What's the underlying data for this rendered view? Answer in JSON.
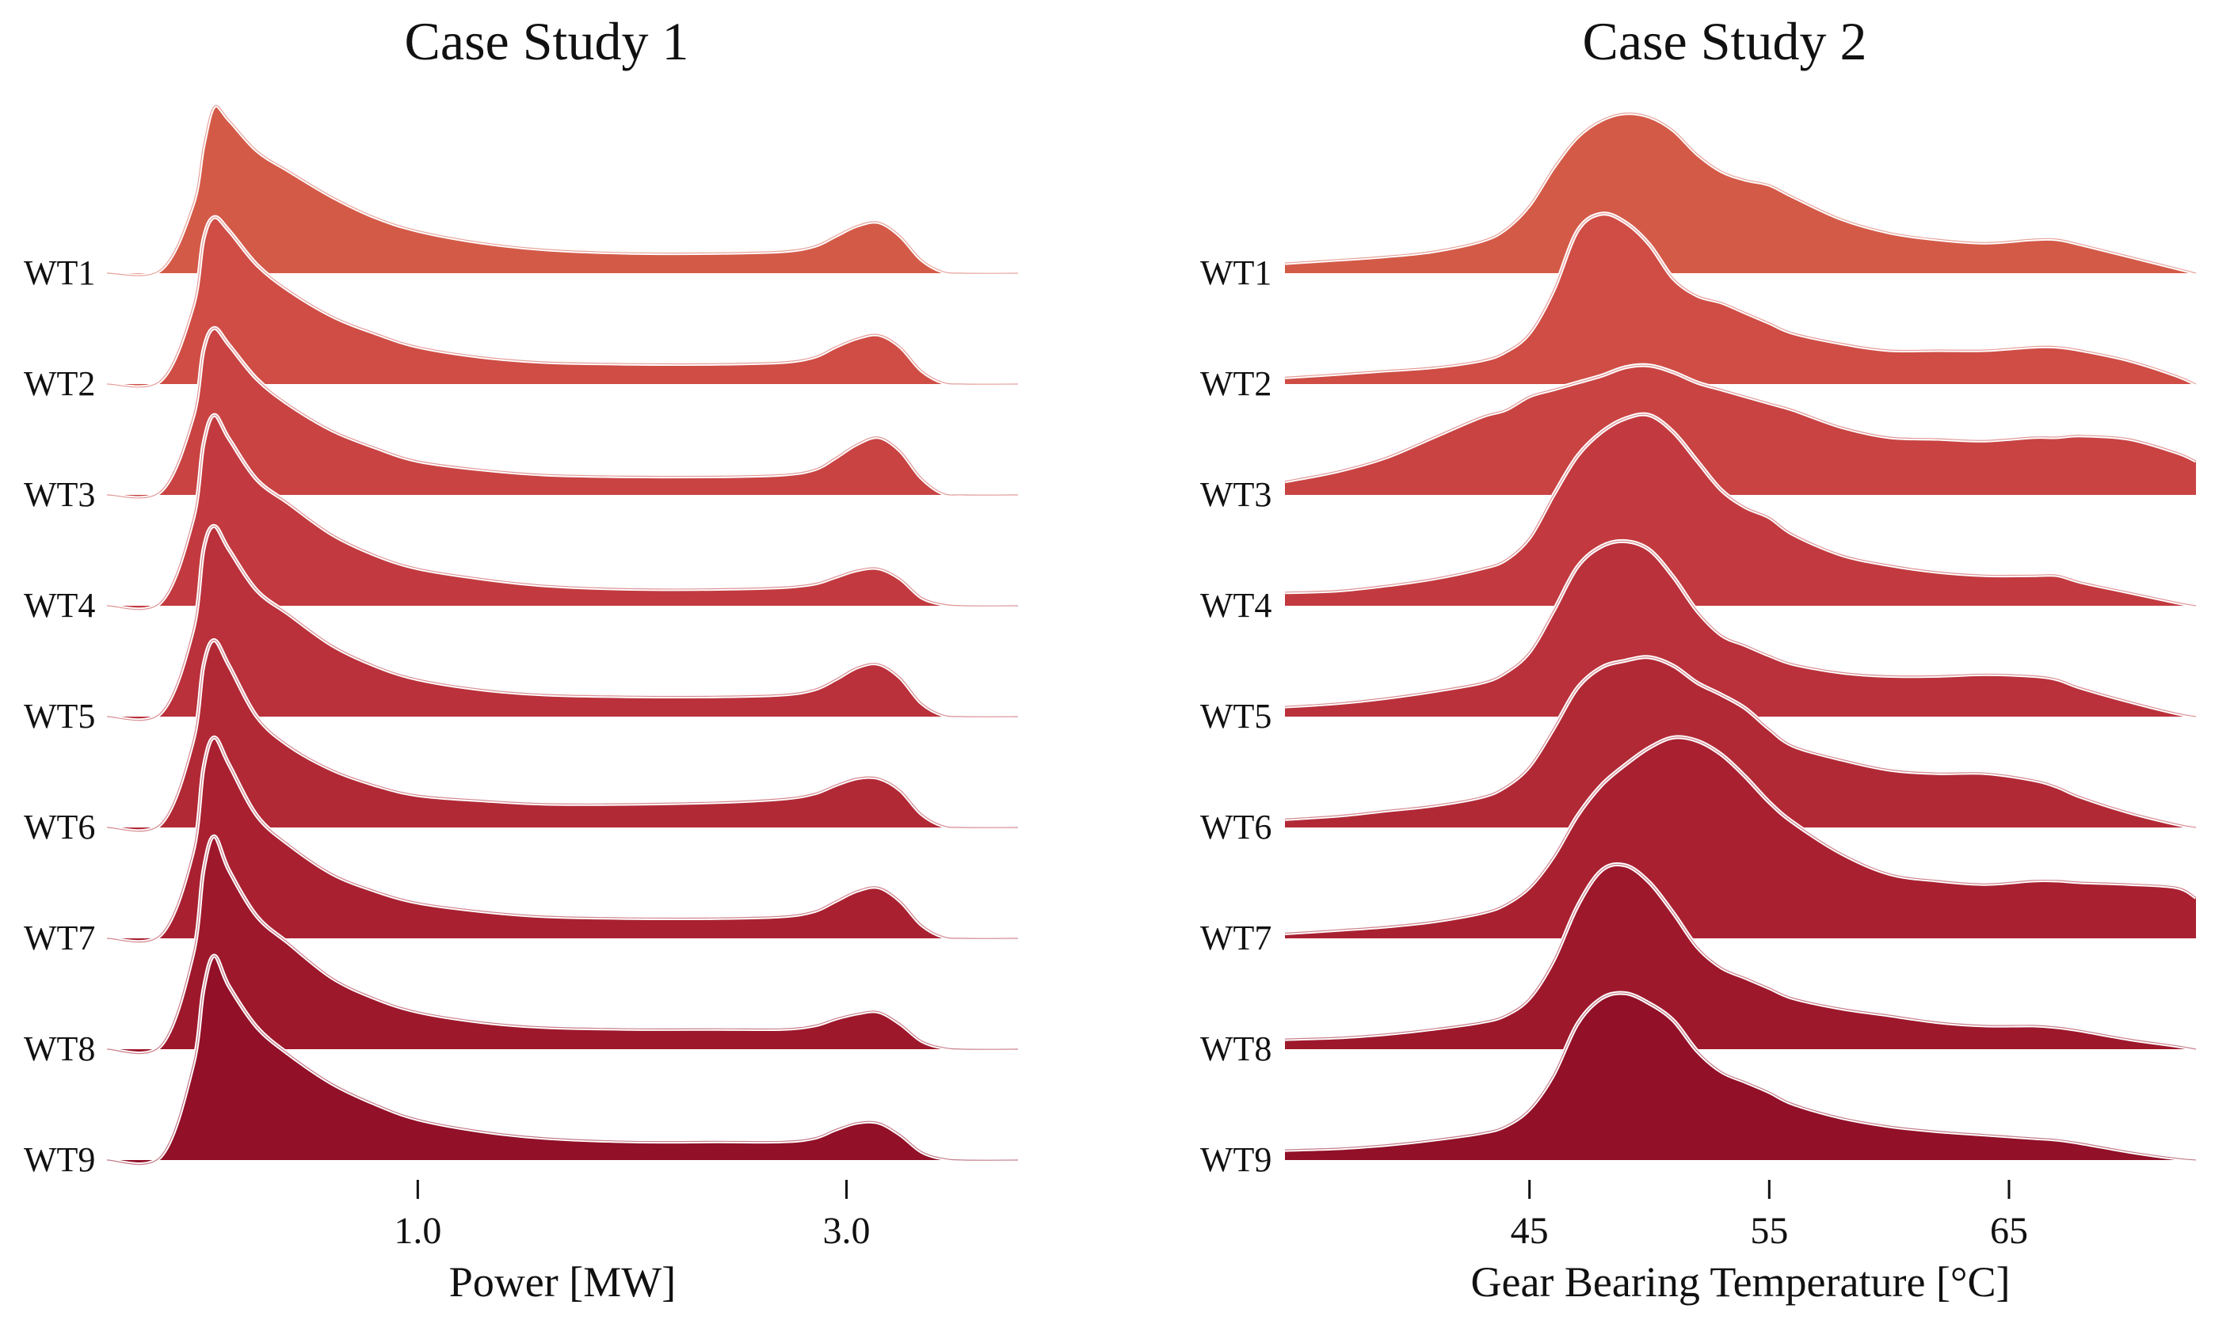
{
  "chart_data": [
    {
      "type": "area",
      "title": "Case Study 1",
      "xlabel": "Power [MW]",
      "ylabel": "",
      "xlim": [
        -0.45,
        3.8
      ],
      "xticks": [
        1.0,
        3.0
      ],
      "xtick_labels": [
        "1.0",
        "3.0"
      ],
      "grid": false,
      "x": [
        -0.45,
        -0.2,
        -0.05,
        0.0,
        0.05,
        0.12,
        0.25,
        0.4,
        0.6,
        0.8,
        1.0,
        1.3,
        1.6,
        2.0,
        2.4,
        2.7,
        2.85,
        2.95,
        3.05,
        3.15,
        3.25,
        3.35,
        3.45,
        3.55,
        3.8
      ],
      "series": [
        {
          "name": "WT1",
          "color": "#d45a48",
          "values": [
            0,
            0.02,
            0.4,
            0.75,
            0.98,
            0.9,
            0.72,
            0.6,
            0.45,
            0.33,
            0.25,
            0.18,
            0.14,
            0.12,
            0.12,
            0.13,
            0.16,
            0.22,
            0.28,
            0.3,
            0.22,
            0.08,
            0.01,
            0,
            0
          ]
        },
        {
          "name": "WT2",
          "color": "#cf4d45",
          "values": [
            0,
            0.02,
            0.45,
            0.85,
            0.98,
            0.9,
            0.7,
            0.55,
            0.4,
            0.3,
            0.22,
            0.16,
            0.13,
            0.12,
            0.12,
            0.13,
            0.16,
            0.22,
            0.27,
            0.29,
            0.22,
            0.08,
            0.01,
            0,
            0
          ]
        },
        {
          "name": "WT3",
          "color": "#c94343",
          "values": [
            0,
            0.02,
            0.45,
            0.85,
            0.98,
            0.88,
            0.68,
            0.53,
            0.38,
            0.28,
            0.2,
            0.15,
            0.12,
            0.11,
            0.11,
            0.12,
            0.15,
            0.22,
            0.3,
            0.34,
            0.26,
            0.1,
            0.01,
            0,
            0
          ]
        },
        {
          "name": "WT4",
          "color": "#c23a3f",
          "values": [
            0,
            0.02,
            0.5,
            0.95,
            1.12,
            0.98,
            0.74,
            0.6,
            0.42,
            0.3,
            0.22,
            0.16,
            0.12,
            0.1,
            0.1,
            0.11,
            0.13,
            0.17,
            0.21,
            0.22,
            0.16,
            0.05,
            0.01,
            0,
            0
          ]
        },
        {
          "name": "WT5",
          "color": "#ba313b",
          "values": [
            0,
            0.02,
            0.5,
            0.98,
            1.12,
            0.98,
            0.74,
            0.6,
            0.42,
            0.3,
            0.22,
            0.16,
            0.13,
            0.12,
            0.12,
            0.13,
            0.16,
            0.22,
            0.29,
            0.31,
            0.23,
            0.08,
            0.01,
            0,
            0
          ]
        },
        {
          "name": "WT6",
          "color": "#b22936",
          "values": [
            0,
            0.02,
            0.5,
            0.95,
            1.1,
            0.95,
            0.65,
            0.48,
            0.34,
            0.25,
            0.19,
            0.16,
            0.14,
            0.14,
            0.15,
            0.17,
            0.2,
            0.25,
            0.29,
            0.29,
            0.22,
            0.08,
            0.01,
            0,
            0
          ]
        },
        {
          "name": "WT7",
          "color": "#a92131",
          "values": [
            0,
            0.02,
            0.5,
            1.0,
            1.18,
            1.02,
            0.72,
            0.55,
            0.38,
            0.28,
            0.21,
            0.16,
            0.13,
            0.12,
            0.12,
            0.13,
            0.16,
            0.22,
            0.28,
            0.3,
            0.22,
            0.08,
            0.01,
            0,
            0
          ]
        },
        {
          "name": "WT8",
          "color": "#9e182c",
          "values": [
            0,
            0.02,
            0.55,
            1.05,
            1.25,
            1.05,
            0.78,
            0.62,
            0.42,
            0.3,
            0.22,
            0.16,
            0.13,
            0.12,
            0.12,
            0.12,
            0.14,
            0.18,
            0.21,
            0.22,
            0.15,
            0.05,
            0.01,
            0,
            0
          ]
        },
        {
          "name": "WT9",
          "color": "#921028",
          "values": [
            0,
            0.02,
            0.55,
            1.0,
            1.2,
            1.02,
            0.78,
            0.62,
            0.45,
            0.33,
            0.24,
            0.17,
            0.13,
            0.11,
            0.11,
            0.11,
            0.13,
            0.18,
            0.22,
            0.22,
            0.15,
            0.05,
            0.01,
            0,
            0
          ]
        }
      ]
    },
    {
      "type": "area",
      "title": "Case Study 2",
      "xlabel": "Gear Bearing Temperature [°C]",
      "ylabel": "",
      "xlim": [
        34.8,
        72.8
      ],
      "xticks": [
        45,
        55,
        65
      ],
      "xtick_labels": [
        "45",
        "55",
        "65"
      ],
      "grid": false,
      "x": [
        34.8,
        37,
        39,
        41,
        43,
        44,
        45,
        46,
        47,
        48,
        49,
        50,
        51,
        52,
        53,
        54,
        55,
        56,
        58,
        60,
        62,
        64,
        66,
        67,
        68,
        70,
        72,
        72.8
      ],
      "series": [
        {
          "name": "WT1",
          "color": "#d45a48",
          "values": [
            0.06,
            0.08,
            0.1,
            0.13,
            0.19,
            0.26,
            0.4,
            0.62,
            0.8,
            0.9,
            0.94,
            0.92,
            0.84,
            0.7,
            0.6,
            0.55,
            0.52,
            0.45,
            0.32,
            0.24,
            0.2,
            0.18,
            0.2,
            0.2,
            0.17,
            0.1,
            0.03,
            0
          ]
        },
        {
          "name": "WT2",
          "color": "#cf4d45",
          "values": [
            0.04,
            0.06,
            0.08,
            0.1,
            0.14,
            0.19,
            0.3,
            0.55,
            0.9,
            1.0,
            0.95,
            0.82,
            0.62,
            0.52,
            0.48,
            0.42,
            0.36,
            0.3,
            0.24,
            0.2,
            0.2,
            0.2,
            0.22,
            0.22,
            0.2,
            0.14,
            0.05,
            0
          ]
        },
        {
          "name": "WT3",
          "color": "#c94343",
          "values": [
            0.08,
            0.14,
            0.22,
            0.34,
            0.46,
            0.5,
            0.58,
            0.62,
            0.66,
            0.7,
            0.75,
            0.76,
            0.72,
            0.66,
            0.62,
            0.58,
            0.54,
            0.5,
            0.4,
            0.34,
            0.33,
            0.32,
            0.34,
            0.34,
            0.35,
            0.33,
            0.25,
            0.2
          ]
        },
        {
          "name": "WT4",
          "color": "#c23a3f",
          "values": [
            0.08,
            0.09,
            0.12,
            0.16,
            0.22,
            0.27,
            0.4,
            0.65,
            0.88,
            1.02,
            1.1,
            1.12,
            1.02,
            0.85,
            0.68,
            0.58,
            0.52,
            0.42,
            0.3,
            0.24,
            0.2,
            0.18,
            0.18,
            0.18,
            0.14,
            0.08,
            0.02,
            0
          ]
        },
        {
          "name": "WT5",
          "color": "#ba313b",
          "values": [
            0.06,
            0.08,
            0.11,
            0.15,
            0.2,
            0.26,
            0.38,
            0.62,
            0.88,
            1.0,
            1.03,
            0.98,
            0.82,
            0.62,
            0.48,
            0.42,
            0.36,
            0.31,
            0.26,
            0.24,
            0.24,
            0.25,
            0.24,
            0.22,
            0.17,
            0.09,
            0.02,
            0
          ]
        },
        {
          "name": "WT6",
          "color": "#b22936",
          "values": [
            0.05,
            0.07,
            0.1,
            0.13,
            0.18,
            0.24,
            0.36,
            0.58,
            0.82,
            0.94,
            0.98,
            1.0,
            0.95,
            0.85,
            0.78,
            0.7,
            0.58,
            0.48,
            0.4,
            0.34,
            0.32,
            0.32,
            0.28,
            0.24,
            0.18,
            0.09,
            0.02,
            0
          ]
        },
        {
          "name": "WT7",
          "color": "#a92131",
          "values": [
            0.03,
            0.05,
            0.07,
            0.1,
            0.15,
            0.2,
            0.3,
            0.48,
            0.72,
            0.9,
            1.02,
            1.12,
            1.18,
            1.16,
            1.08,
            0.95,
            0.8,
            0.68,
            0.5,
            0.38,
            0.34,
            0.32,
            0.34,
            0.34,
            0.33,
            0.32,
            0.3,
            0.24
          ]
        },
        {
          "name": "WT8",
          "color": "#9e182c",
          "values": [
            0.06,
            0.07,
            0.09,
            0.12,
            0.16,
            0.2,
            0.3,
            0.52,
            0.84,
            1.05,
            1.08,
            0.98,
            0.8,
            0.6,
            0.48,
            0.42,
            0.36,
            0.3,
            0.24,
            0.2,
            0.16,
            0.14,
            0.14,
            0.13,
            0.11,
            0.06,
            0.02,
            0
          ]
        },
        {
          "name": "WT9",
          "color": "#921028",
          "values": [
            0.06,
            0.07,
            0.09,
            0.12,
            0.16,
            0.2,
            0.3,
            0.5,
            0.8,
            0.95,
            0.98,
            0.92,
            0.82,
            0.64,
            0.52,
            0.46,
            0.4,
            0.33,
            0.25,
            0.2,
            0.17,
            0.15,
            0.13,
            0.12,
            0.1,
            0.05,
            0.01,
            0
          ]
        }
      ]
    }
  ]
}
